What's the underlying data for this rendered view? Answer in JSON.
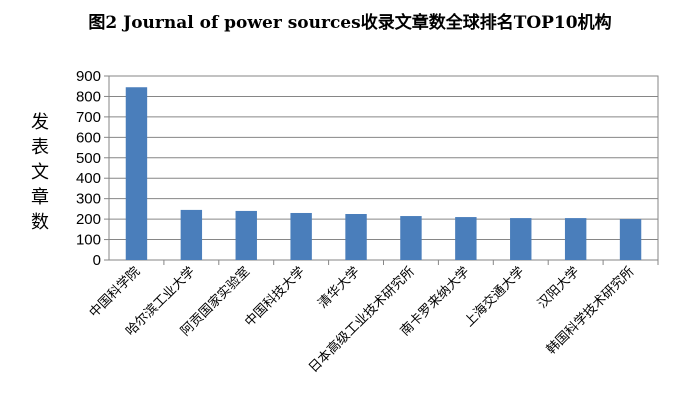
{
  "chart_data": {
    "type": "bar",
    "title": "图2 Journal of power sources收录文章数全球排名TOP10机构",
    "xlabel": "",
    "ylabel": "发表文章数",
    "ylim": [
      0,
      900
    ],
    "yticks": [
      0,
      100,
      200,
      300,
      400,
      500,
      600,
      700,
      800,
      900
    ],
    "grid": true,
    "legend": "none",
    "bar_color": "#4a7ebb",
    "categories": [
      "中国科学院",
      "哈尔滨工业大学",
      "阿贡国家实验室",
      "中国科技大学",
      "清华大学",
      "日本高级工业技术研究所",
      "南卡罗来纳大学",
      "上海交通大学",
      "汉阳大学",
      "韩国科学技术研究所"
    ],
    "values": [
      845,
      245,
      240,
      230,
      225,
      215,
      210,
      205,
      205,
      200
    ]
  }
}
